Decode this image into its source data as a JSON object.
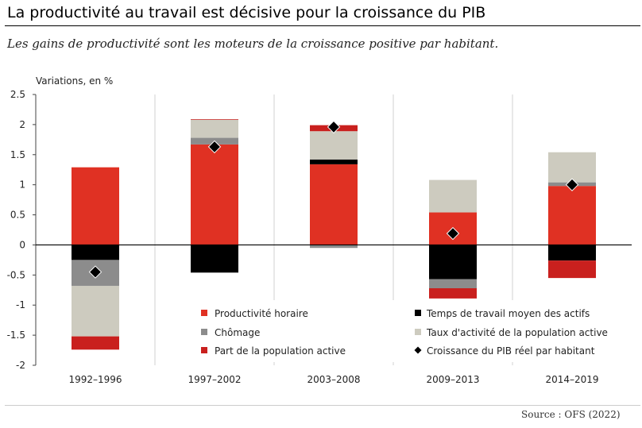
{
  "title": "La productivité au travail est décisive pour la croissance du PIB",
  "subtitle": "Les gains de productivité sont les moteurs de la croissance positive par habitant.",
  "source": "Source : OFS (2022)",
  "chart_data": {
    "type": "bar",
    "stacked": true,
    "ylabel": "Variations, en %",
    "ylim": [
      -2,
      2.5
    ],
    "yticks": [
      {
        "value": 2.5,
        "label": "2.5"
      },
      {
        "value": 2,
        "label": "2"
      },
      {
        "value": 1.5,
        "label": "1.5"
      },
      {
        "value": 1,
        "label": "1"
      },
      {
        "value": 0.5,
        "label": "0.5"
      },
      {
        "value": 0,
        "label": "0"
      },
      {
        "value": -0.5,
        "label": "-0.5"
      },
      {
        "value": -1,
        "label": "-1"
      },
      {
        "value": -1.5,
        "label": "-1.5"
      },
      {
        "value": -2,
        "label": "-2"
      }
    ],
    "categories": [
      "1992–1996",
      "1997–2002",
      "2003–2008",
      "2009–2013",
      "2014–2019"
    ],
    "series": [
      {
        "name": "Productivité horaire",
        "color": "#e03123",
        "values": [
          1.29,
          1.67,
          1.34,
          0.54,
          0.98
        ]
      },
      {
        "name": "Temps de travail moyen des actifs",
        "color": "#000000",
        "values": [
          -0.25,
          -0.46,
          0.08,
          -0.57,
          -0.26
        ]
      },
      {
        "name": "Chômage",
        "color": "#8c8c8c",
        "values": [
          -0.43,
          0.11,
          -0.05,
          -0.15,
          0.06
        ]
      },
      {
        "name": "Taux d'activité de la population active",
        "color": "#cdcbbf",
        "values": [
          -0.84,
          0.3,
          0.47,
          0.54,
          0.5
        ]
      },
      {
        "name": "Part de la population active",
        "color": "#c9201e",
        "values": [
          -0.22,
          0.01,
          0.1,
          -0.17,
          -0.29
        ]
      }
    ],
    "line_series": {
      "name": "Croissance du PIB réel par habitant",
      "marker": "diamond",
      "color": "#000000",
      "values": [
        -0.45,
        1.63,
        1.96,
        0.19,
        1.0
      ]
    },
    "legend": {
      "placement": "bottom-center",
      "items": [
        {
          "label": "Productivité horaire",
          "color": "#e03123",
          "marker": "square"
        },
        {
          "label": "Temps de travail moyen des actifs",
          "color": "#000000",
          "marker": "square"
        },
        {
          "label": "Chômage",
          "color": "#8c8c8c",
          "marker": "square"
        },
        {
          "label": "Taux d'activité de la population active",
          "color": "#cdcbbf",
          "marker": "square"
        },
        {
          "label": "Part de la population active",
          "color": "#c9201e",
          "marker": "square"
        },
        {
          "label": "Croissance du PIB réel par habitant",
          "color": "#000000",
          "marker": "diamond"
        }
      ]
    },
    "grid": "vertical separators"
  }
}
